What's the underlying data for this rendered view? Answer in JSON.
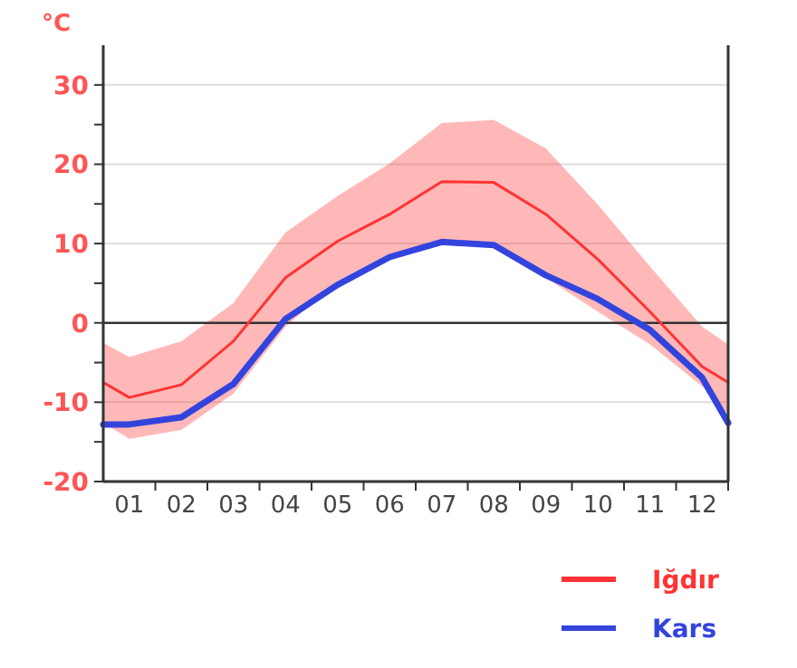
{
  "chart_data": {
    "type": "line",
    "ylabel": "°C",
    "x": [
      0.5,
      1,
      2,
      3,
      4,
      5,
      6,
      7,
      8,
      9,
      10,
      11,
      12,
      12.5
    ],
    "xlim": [
      0.5,
      12.5
    ],
    "xticks": [
      {
        "value": 1,
        "label": "01"
      },
      {
        "value": 2,
        "label": "02"
      },
      {
        "value": 3,
        "label": "03"
      },
      {
        "value": 4,
        "label": "04"
      },
      {
        "value": 5,
        "label": "05"
      },
      {
        "value": 6,
        "label": "06"
      },
      {
        "value": 7,
        "label": "07"
      },
      {
        "value": 8,
        "label": "08"
      },
      {
        "value": 9,
        "label": "09"
      },
      {
        "value": 10,
        "label": "10"
      },
      {
        "value": 11,
        "label": "11"
      },
      {
        "value": 12,
        "label": "12"
      }
    ],
    "ylim": [
      -20,
      35
    ],
    "yticks": [
      -20,
      {
        "value": -15,
        "label": null
      },
      -10,
      {
        "value": -5,
        "label": null
      },
      0,
      {
        "value": 5,
        "label": null
      },
      10,
      {
        "value": 15,
        "label": null
      },
      20,
      {
        "value": 25,
        "label": null
      },
      30
    ],
    "grid": "y",
    "legend": "bottom right",
    "ref_lines": [
      {
        "axis": "y",
        "value": 0,
        "color": "#333333"
      }
    ],
    "series": [
      {
        "name": "Iğdır",
        "color": "#ff3333",
        "values": [
          -7.5,
          -9.4,
          -7.8,
          -2.3,
          5.7,
          10.3,
          13.7,
          17.8,
          17.7,
          13.7,
          8,
          1.4,
          -5.5,
          -7.5
        ],
        "lower": [
          -12.6,
          -14.6,
          -13.5,
          -8.9,
          -0.5,
          5.3,
          8.7,
          10.2,
          9.4,
          5.7,
          1.4,
          -2.7,
          -8,
          -11.5
        ],
        "upper": [
          -2.5,
          -4.3,
          -2.3,
          2.5,
          11.4,
          16,
          20.1,
          25.2,
          25.6,
          22,
          14.9,
          7.1,
          -0.5,
          -2.7
        ]
      },
      {
        "name": "Kars",
        "color": "#3344dd",
        "values": [
          -12.8,
          -12.8,
          -11.9,
          -7.7,
          0.5,
          4.8,
          8.3,
          10.2,
          9.8,
          6,
          3,
          -0.9,
          -6.9,
          -12.6
        ]
      }
    ]
  }
}
